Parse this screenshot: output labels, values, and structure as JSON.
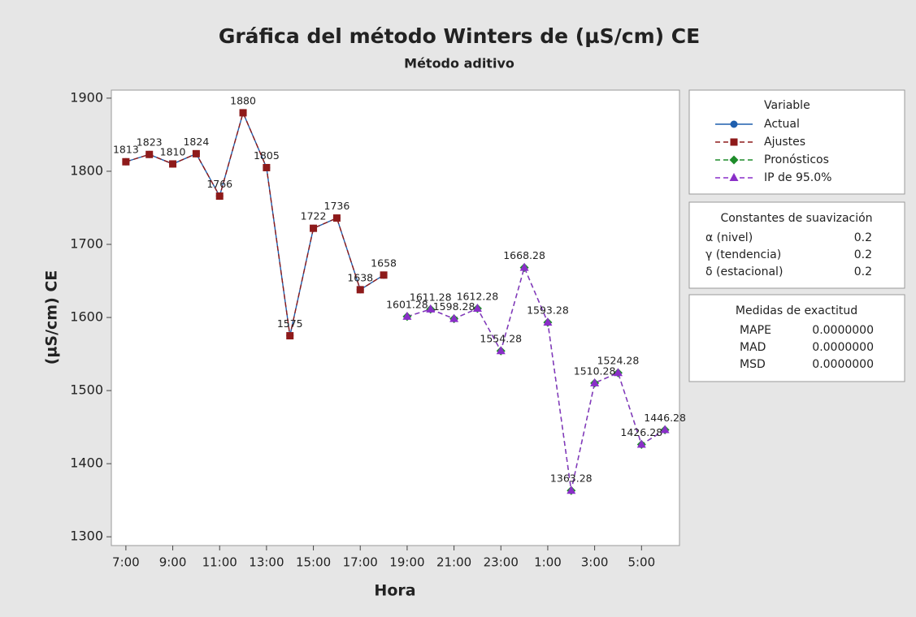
{
  "chart_data": {
    "type": "line",
    "title": "Gráfica del método Winters de (µS/cm) CE",
    "subtitle": "Método aditivo",
    "x_label": "Hora",
    "y_label": "(µS/cm) CE",
    "categories": [
      "7:00",
      null,
      "9:00",
      null,
      "11:00",
      null,
      "13:00",
      null,
      "15:00",
      null,
      "17:00",
      null,
      "19:00",
      null,
      "21:00",
      null,
      "23:00",
      null,
      "1:00",
      null,
      "3:00",
      null,
      "5:00",
      null
    ],
    "series": [
      {
        "name": "Actual",
        "color": "#1f5fae",
        "marker": "circle",
        "linestyle": "solid",
        "values": [
          1813,
          1823,
          1810,
          1824,
          1766,
          1880,
          1805,
          1575,
          1722,
          1736,
          1638,
          1658,
          null,
          null,
          null,
          null,
          null,
          null,
          null,
          null,
          null,
          null,
          null,
          null
        ]
      },
      {
        "name": "Ajustes",
        "color": "#8e1a1a",
        "marker": "square",
        "linestyle": "dashed",
        "values": [
          1813,
          1823,
          1810,
          1824,
          1766,
          1880,
          1805,
          1575,
          1722,
          1736,
          1638,
          1658,
          null,
          null,
          null,
          null,
          null,
          null,
          null,
          null,
          null,
          null,
          null,
          null
        ]
      },
      {
        "name": "Pronósticos",
        "color": "#1e8c2a",
        "marker": "diamond",
        "linestyle": "dashed",
        "values": [
          null,
          null,
          null,
          null,
          null,
          null,
          null,
          null,
          null,
          null,
          null,
          null,
          1601.28,
          1611.28,
          1598.28,
          1612.28,
          1554.28,
          1668.28,
          1593.28,
          1363.28,
          1510.28,
          1524.28,
          1426.28,
          1446.28
        ]
      },
      {
        "name": "IP de 95.0%",
        "color": "#8a2fc8",
        "marker": "triangle",
        "linestyle": "dashed",
        "values": [
          null,
          null,
          null,
          null,
          null,
          null,
          null,
          null,
          null,
          null,
          null,
          null,
          1601.28,
          1611.28,
          1598.28,
          1612.28,
          1554.28,
          1668.28,
          1593.28,
          1363.28,
          1510.28,
          1524.28,
          1426.28,
          1446.28
        ]
      }
    ],
    "ylim": [
      1288,
      1911
    ],
    "yticks": [
      1300,
      1400,
      1500,
      1600,
      1700,
      1800,
      1900
    ],
    "grid": false,
    "data_labels": true,
    "legend_title": "Variable",
    "legend_position": "right",
    "smoothing": {
      "title": "Constantes de suavización",
      "rows": [
        {
          "label": "α (nivel)",
          "value": 0.2
        },
        {
          "label": "γ (tendencia)",
          "value": 0.2
        },
        {
          "label": "δ (estacional)",
          "value": 0.2
        }
      ]
    },
    "accuracy": {
      "title": "Medidas de exactitud",
      "rows": [
        {
          "label": "MAPE",
          "value": "0.0000000"
        },
        {
          "label": "MAD",
          "value": "0.0000000"
        },
        {
          "label": "MSD",
          "value": "0.0000000"
        }
      ]
    }
  }
}
